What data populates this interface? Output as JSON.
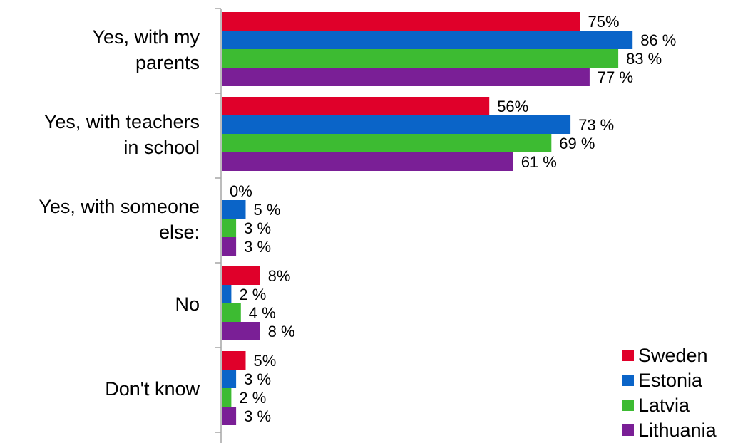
{
  "chart_data": {
    "type": "bar",
    "orientation": "horizontal",
    "categories": [
      [
        "Yes, with my",
        "parents"
      ],
      [
        "Yes, with teachers",
        "in school"
      ],
      [
        "Yes, with someone",
        "else:"
      ],
      [
        "No"
      ],
      [
        "Don't know"
      ]
    ],
    "series": [
      {
        "name": "Sweden",
        "color": "#e0002a",
        "values": [
          75,
          56,
          0,
          8,
          5
        ],
        "labels": [
          "75%",
          "56%",
          "0%",
          "8%",
          "5%"
        ]
      },
      {
        "name": "Estonia",
        "color": "#0a64c8",
        "values": [
          86,
          73,
          5,
          2,
          3
        ],
        "labels": [
          "86 %",
          "73 %",
          "5 %",
          "2 %",
          "3 %"
        ]
      },
      {
        "name": "Latvia",
        "color": "#3dbb32",
        "values": [
          83,
          69,
          3,
          4,
          2
        ],
        "labels": [
          "83 %",
          "69 %",
          "3 %",
          "4 %",
          "2 %"
        ]
      },
      {
        "name": "Lithuania",
        "color": "#7a1f96",
        "values": [
          77,
          61,
          3,
          8,
          3
        ],
        "labels": [
          "77 %",
          "61 %",
          "3 %",
          "8 %",
          "3 %"
        ]
      }
    ],
    "xlim": [
      0,
      100
    ],
    "grid": false,
    "legend_position": "bottom-right"
  }
}
